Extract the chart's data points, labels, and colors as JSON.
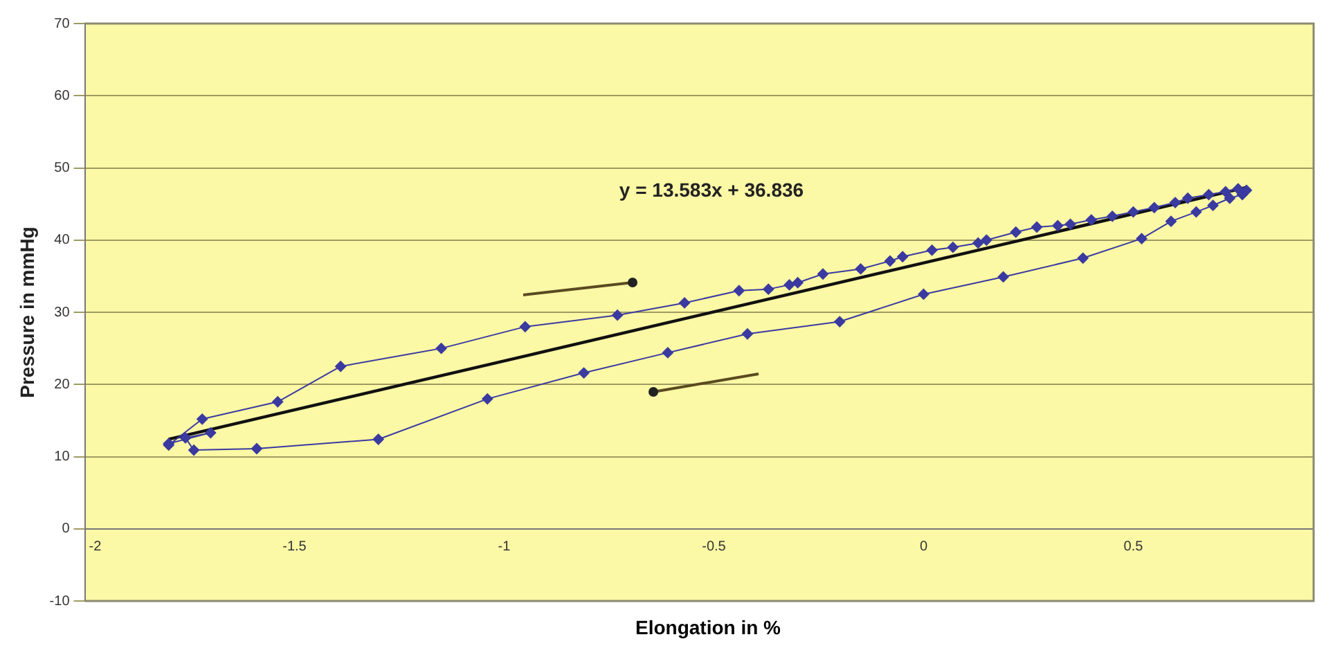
{
  "chart_data": {
    "type": "line",
    "xlabel": "Elongation in %",
    "ylabel": "Pressure in mmHg",
    "annotations": [
      "y = 13.583x + 36.836"
    ],
    "xlim": [
      -2,
      0.93
    ],
    "xticks": [
      -2,
      -1.5,
      -1,
      -0.5,
      0,
      0.5
    ],
    "ylim": [
      -10,
      70
    ],
    "yticks": [
      -10,
      0,
      10,
      20,
      30,
      40,
      50,
      60,
      70
    ],
    "grid": "y",
    "legend": false,
    "marker": "diamond",
    "line_style": "solid",
    "series": [
      {
        "color": "#3a3aa0",
        "x": [
          -1.8,
          -1.72,
          -1.54,
          -1.39,
          -1.15,
          -0.95,
          -0.73,
          -0.57,
          -0.44,
          -0.37,
          -0.32,
          -0.3,
          -0.24,
          -0.15,
          -0.08,
          -0.05,
          0.02,
          0.07,
          0.13,
          0.15,
          0.22,
          0.27,
          0.32,
          0.35,
          0.4,
          0.45,
          0.5,
          0.55,
          0.6,
          0.63,
          0.68,
          0.72,
          0.75,
          0.77,
          0.76,
          0.73,
          0.69,
          0.65,
          0.59,
          0.52,
          0.38,
          0.19,
          0,
          -0.2,
          -0.42,
          -0.61,
          -0.81,
          -1.04,
          -1.3,
          -1.59,
          -1.74,
          -1.76,
          -1.7,
          -1.8
        ],
        "values": [
          11.6,
          15.2,
          17.6,
          22.5,
          25,
          28,
          29.6,
          31.3,
          33,
          33.2,
          33.8,
          34.1,
          35.3,
          36,
          37.1,
          37.7,
          38.6,
          39,
          39.6,
          40,
          41.1,
          41.8,
          42,
          42.2,
          42.8,
          43.3,
          43.9,
          44.5,
          45.2,
          45.8,
          46.3,
          46.7,
          47.1,
          46.9,
          46.3,
          45.8,
          44.8,
          43.9,
          42.6,
          40.2,
          37.5,
          34.9,
          32.5,
          28.7,
          27,
          24.4,
          21.6,
          18,
          12.4,
          11.1,
          10.9,
          12.6,
          13.3,
          11.8
        ]
      },
      {
        "type": "line",
        "color": "#111111",
        "marker": "none",
        "x": [
          -1.8,
          0.77
        ],
        "values": [
          12.4,
          47.3
        ]
      }
    ]
  }
}
